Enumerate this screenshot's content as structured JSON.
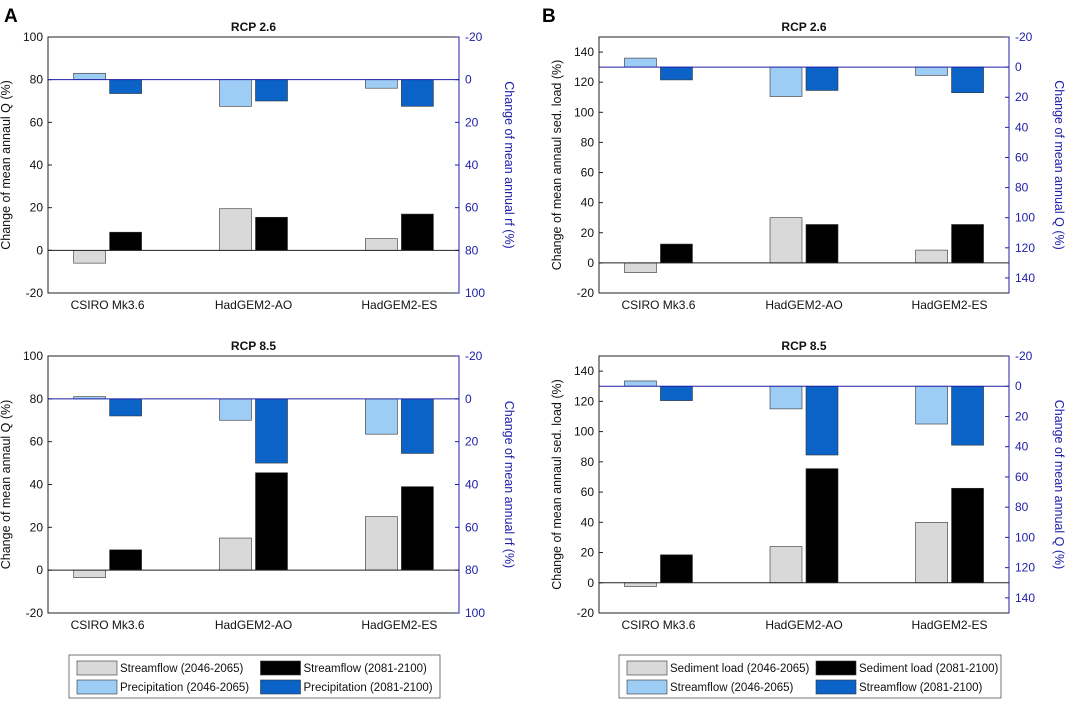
{
  "panels": [
    {
      "label": "A",
      "legend": [
        {
          "label": "Streamflow (2046-2065)",
          "color": "#d9d9d9"
        },
        {
          "label": "Streamflow (2081-2100)",
          "color": "#000000"
        },
        {
          "label": "Precipitation (2046-2065)",
          "color": "#9dcdf5"
        },
        {
          "label": "Precipitation (2081-2100)",
          "color": "#0b63c8"
        }
      ]
    },
    {
      "label": "B",
      "legend": [
        {
          "label": "Sediment load (2046-2065)",
          "color": "#d9d9d9"
        },
        {
          "label": "Sediment load (2081-2100)",
          "color": "#000000"
        },
        {
          "label": "Streamflow (2046-2065)",
          "color": "#9dcdf5"
        },
        {
          "label": "Streamflow (2081-2100)",
          "color": "#0b63c8"
        }
      ]
    }
  ],
  "chart_data": [
    {
      "type": "bar",
      "panel": "A",
      "title": "RCP 2.6",
      "categories": [
        "CSIRO Mk3.6",
        "HadGEM2-AO",
        "HadGEM2-ES"
      ],
      "ylabel": "Change of mean annaul Q (%)",
      "ylim": [
        -20,
        100
      ],
      "yticks": [
        -20,
        0,
        20,
        40,
        60,
        80,
        100
      ],
      "y2label": "Change of mean annual rf (%)",
      "y2lim": [
        -20,
        100
      ],
      "y2reversed": true,
      "y2ticks": [
        -20,
        0,
        20,
        40,
        60,
        80,
        100
      ],
      "series": [
        {
          "name": "Streamflow (2046-2065)",
          "axis": "left",
          "color": "#d9d9d9",
          "values": [
            -6,
            19.5,
            5.5
          ]
        },
        {
          "name": "Streamflow (2081-2100)",
          "axis": "left",
          "color": "#000000",
          "values": [
            8.5,
            15.5,
            17
          ]
        },
        {
          "name": "Precipitation (2046-2065)",
          "axis": "right",
          "color": "#9dcdf5",
          "values": [
            -3,
            12.5,
            4
          ]
        },
        {
          "name": "Precipitation (2081-2100)",
          "axis": "right",
          "color": "#0b63c8",
          "values": [
            6.5,
            10,
            12.5
          ]
        }
      ]
    },
    {
      "type": "bar",
      "panel": "B",
      "title": "RCP 2.6",
      "categories": [
        "CSIRO Mk3.6",
        "HadGEM2-AO",
        "HadGEM2-ES"
      ],
      "ylabel": "Change of mean annaul sed. load (%)",
      "ylim": [
        -20,
        150
      ],
      "yticks": [
        -20,
        0,
        20,
        40,
        60,
        80,
        100,
        120,
        140
      ],
      "y2label": "Change of mean annual Q (%)",
      "y2lim": [
        -20,
        150
      ],
      "y2reversed": true,
      "y2ticks": [
        -20,
        0,
        20,
        40,
        60,
        80,
        100,
        120,
        140
      ],
      "series": [
        {
          "name": "Sediment load (2046-2065)",
          "axis": "left",
          "color": "#d9d9d9",
          "values": [
            -6.5,
            30,
            8.5
          ]
        },
        {
          "name": "Sediment load (2081-2100)",
          "axis": "left",
          "color": "#000000",
          "values": [
            12.5,
            25.5,
            25.5
          ]
        },
        {
          "name": "Streamflow (2046-2065)",
          "axis": "right",
          "color": "#9dcdf5",
          "values": [
            -6,
            19.5,
            5.5
          ]
        },
        {
          "name": "Streamflow (2081-2100)",
          "axis": "right",
          "color": "#0b63c8",
          "values": [
            8.5,
            15.5,
            17
          ]
        }
      ]
    },
    {
      "type": "bar",
      "panel": "A",
      "title": "RCP 8.5",
      "categories": [
        "CSIRO Mk3.6",
        "HadGEM2-AO",
        "HadGEM2-ES"
      ],
      "ylabel": "Change of mean annaul Q (%)",
      "ylim": [
        -20,
        100
      ],
      "yticks": [
        -20,
        0,
        20,
        40,
        60,
        80,
        100
      ],
      "y2label": "Change of mean annual rf (%)",
      "y2lim": [
        -20,
        100
      ],
      "y2reversed": true,
      "y2ticks": [
        -20,
        0,
        20,
        40,
        60,
        80,
        100
      ],
      "series": [
        {
          "name": "Streamflow (2046-2065)",
          "axis": "left",
          "color": "#d9d9d9",
          "values": [
            -3.5,
            15,
            25
          ]
        },
        {
          "name": "Streamflow (2081-2100)",
          "axis": "left",
          "color": "#000000",
          "values": [
            9.5,
            45.5,
            39
          ]
        },
        {
          "name": "Precipitation (2046-2065)",
          "axis": "right",
          "color": "#9dcdf5",
          "values": [
            -1,
            10,
            16.5
          ]
        },
        {
          "name": "Precipitation (2081-2100)",
          "axis": "right",
          "color": "#0b63c8",
          "values": [
            8,
            30,
            25.5
          ]
        }
      ]
    },
    {
      "type": "bar",
      "panel": "B",
      "title": "RCP 8.5",
      "categories": [
        "CSIRO Mk3.6",
        "HadGEM2-AO",
        "HadGEM2-ES"
      ],
      "ylabel": "Change of mean annaul sed. load (%)",
      "ylim": [
        -20,
        150
      ],
      "yticks": [
        -20,
        0,
        20,
        40,
        60,
        80,
        100,
        120,
        140
      ],
      "y2label": "Change of mean annual Q (%)",
      "y2lim": [
        -20,
        150
      ],
      "y2reversed": true,
      "y2ticks": [
        -20,
        0,
        20,
        40,
        60,
        80,
        100,
        120,
        140
      ],
      "series": [
        {
          "name": "Sediment load (2046-2065)",
          "axis": "left",
          "color": "#d9d9d9",
          "values": [
            -2.5,
            24,
            40
          ]
        },
        {
          "name": "Sediment load (2081-2100)",
          "axis": "left",
          "color": "#000000",
          "values": [
            18.5,
            75.5,
            62.5
          ]
        },
        {
          "name": "Streamflow (2046-2065)",
          "axis": "right",
          "color": "#9dcdf5",
          "values": [
            -3.5,
            15,
            25
          ]
        },
        {
          "name": "Streamflow (2081-2100)",
          "axis": "right",
          "color": "#0b63c8",
          "values": [
            9.5,
            45.5,
            39
          ]
        }
      ]
    }
  ]
}
